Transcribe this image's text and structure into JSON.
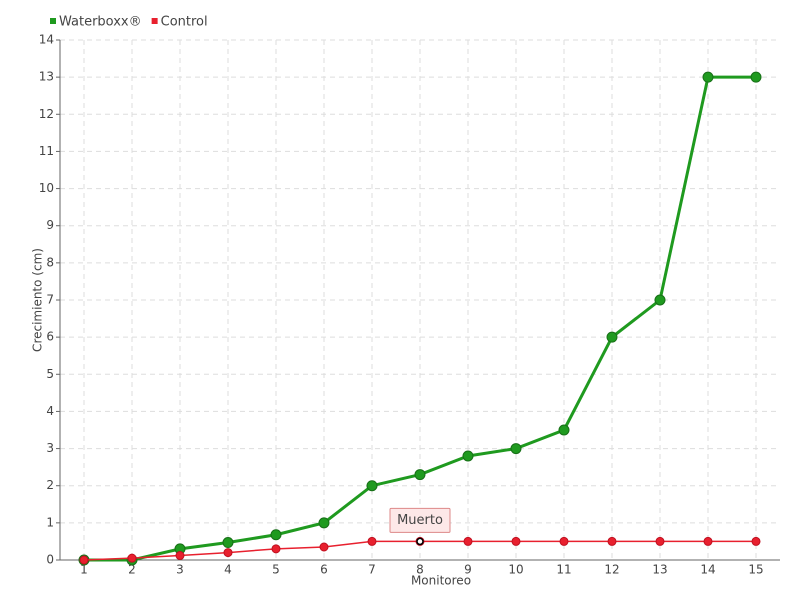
{
  "chart_data": {
    "type": "line",
    "xlabel": "Monitoreo",
    "ylabel": "Crecimiento (cm)",
    "categories": [
      "1",
      "2",
      "3",
      "4",
      "5",
      "6",
      "7",
      "8",
      "9",
      "10",
      "11",
      "12",
      "13",
      "14",
      "15"
    ],
    "series": [
      {
        "name": "Waterboxx®",
        "color": "#1f9a1f",
        "values": [
          0,
          0,
          0.3,
          0.47,
          0.68,
          1,
          2,
          2.3,
          2.8,
          3,
          3.5,
          6,
          7,
          13,
          13
        ]
      },
      {
        "name": "Control",
        "color": "#e8202e",
        "values": [
          0,
          0.05,
          0.12,
          0.2,
          0.3,
          0.35,
          0.5,
          0.5,
          0.5,
          0.5,
          0.5,
          0.5,
          0.5,
          0.5,
          0.5
        ]
      }
    ],
    "annotation": {
      "text": "Muerto",
      "x": "8",
      "series": "Control"
    },
    "ylim": [
      0,
      14
    ],
    "yticks": [
      0,
      1,
      2,
      3,
      4,
      5,
      6,
      7,
      8,
      9,
      10,
      11,
      12,
      13,
      14
    ],
    "grid": true,
    "legend": "top-left"
  }
}
